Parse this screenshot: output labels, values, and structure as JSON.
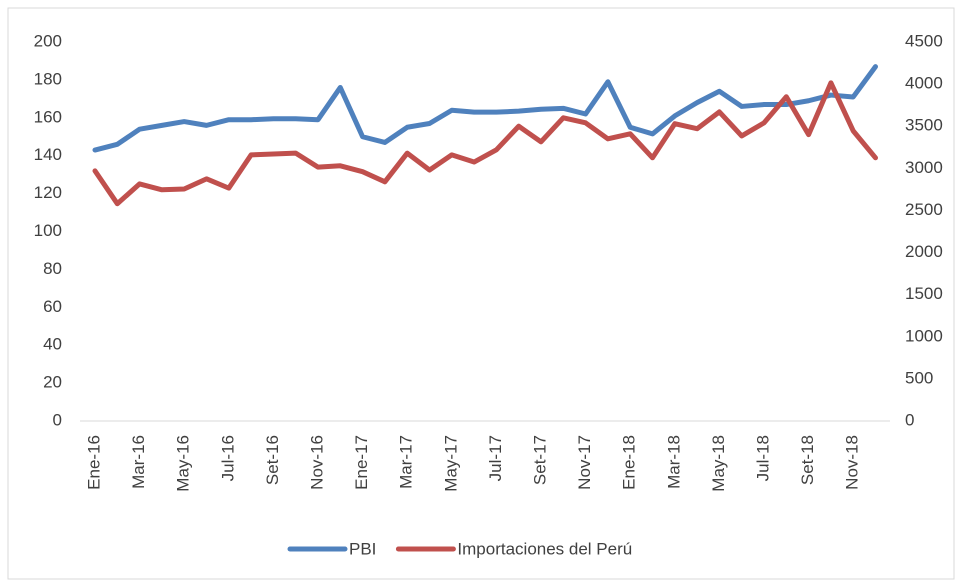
{
  "chart_data": {
    "type": "line",
    "categories": [
      "Ene-16",
      null,
      "Mar-16",
      null,
      "May-16",
      null,
      "Jul-16",
      null,
      "Set-16",
      null,
      "Nov-16",
      null,
      "Ene-17",
      null,
      "Mar-17",
      null,
      "May-17",
      null,
      "Jul-17",
      null,
      "Set-17",
      null,
      "Nov-17",
      null,
      "Ene-18",
      null,
      "Mar-18",
      null,
      "May-18",
      null,
      "Jul-18",
      null,
      "Set-18",
      null,
      "Nov-18",
      null
    ],
    "series": [
      {
        "name": "PBI",
        "color": "#4f81bd",
        "values": [
          143,
          146,
          154,
          156,
          158,
          156,
          159,
          159,
          159.5,
          159.5,
          159,
          176,
          150,
          147,
          155,
          157,
          164,
          163,
          163,
          163.5,
          164.5,
          165,
          162,
          179,
          155,
          151.5,
          161,
          168,
          174,
          166,
          167,
          167,
          169,
          172,
          171,
          187
        ]
      },
      {
        "name": "Importaciones del Perú",
        "color": "#c0504d",
        "axis": "y2",
        "values": [
          2970,
          2580,
          2815,
          2745,
          2755,
          2875,
          2765,
          3160,
          3170,
          3180,
          3015,
          3030,
          2960,
          2840,
          3180,
          2980,
          3160,
          3075,
          3220,
          3500,
          3315,
          3600,
          3540,
          3350,
          3410,
          3125,
          3530,
          3470,
          3670,
          3385,
          3540,
          3850,
          3400,
          4015,
          3445,
          3125
        ]
      }
    ],
    "ylim": [
      0,
      200
    ],
    "yticks": [
      0,
      20,
      40,
      60,
      80,
      100,
      120,
      140,
      160,
      180,
      200
    ],
    "y2lim": [
      0,
      4500
    ],
    "y2ticks": [
      0,
      500,
      1000,
      1500,
      2000,
      2500,
      3000,
      3500,
      4000,
      4500
    ],
    "grid": false,
    "legend": "bottom"
  }
}
